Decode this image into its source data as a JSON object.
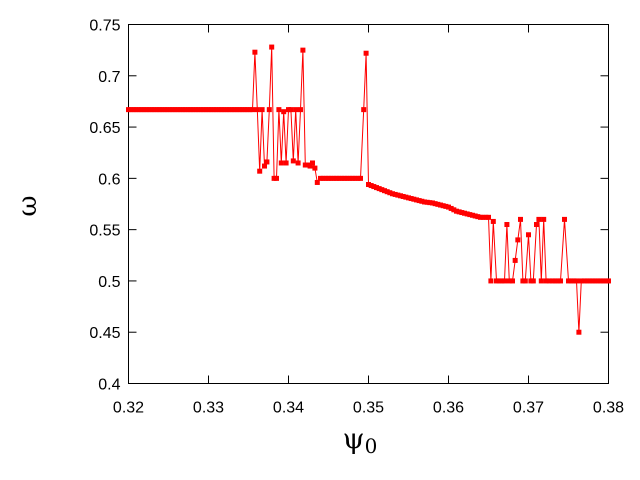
{
  "chart_data": {
    "type": "line",
    "xlabel": "ψ",
    "xlabel_subscript": "0",
    "ylabel": "ω",
    "xlim": [
      0.32,
      0.38
    ],
    "ylim": [
      0.4,
      0.75
    ],
    "xticks": [
      "0.32",
      "0.33",
      "0.34",
      "0.35",
      "0.36",
      "0.37",
      "0.38"
    ],
    "yticks": [
      "0.4",
      "0.45",
      "0.5",
      "0.55",
      "0.6",
      "0.65",
      "0.7",
      "0.75"
    ],
    "grid": false,
    "series_color": "#ff0000",
    "series": [
      {
        "x": [
          0.32,
          0.3355,
          0.3358,
          0.3361,
          0.3364,
          0.3367,
          0.337,
          0.3373,
          0.3376,
          0.3379,
          0.3382,
          0.3385,
          0.3388,
          0.3391,
          0.3394,
          0.3397,
          0.34,
          0.3403,
          0.3406,
          0.3409,
          0.3412,
          0.3415,
          0.3418,
          0.3421,
          0.3424,
          0.3427,
          0.343,
          0.3433,
          0.3436,
          0.344,
          0.345,
          0.346,
          0.347,
          0.348,
          0.349,
          0.3494,
          0.3497,
          0.35,
          0.351,
          0.352,
          0.353,
          0.354,
          0.355,
          0.356,
          0.357,
          0.358,
          0.359,
          0.36,
          0.361,
          0.362,
          0.363,
          0.364,
          0.365,
          0.3653,
          0.3656,
          0.366,
          0.367,
          0.3673,
          0.3676,
          0.368,
          0.369,
          0.3693,
          0.3696,
          0.37,
          0.3703,
          0.3706,
          0.371,
          0.3713,
          0.3716,
          0.3719,
          0.3722,
          0.373,
          0.374,
          0.3745,
          0.375,
          0.376,
          0.3763,
          0.3766,
          0.377,
          0.378,
          0.38
        ],
        "y": [
          0.667,
          0.667,
          0.723,
          0.667,
          0.607,
          0.667,
          0.612,
          0.616,
          0.667,
          0.728,
          0.6,
          0.6,
          0.667,
          0.615,
          0.665,
          0.615,
          0.667,
          0.667,
          0.617,
          0.667,
          0.615,
          0.667,
          0.725,
          0.613,
          0.613,
          0.612,
          0.615,
          0.61,
          0.596,
          0.6,
          0.6,
          0.6,
          0.6,
          0.6,
          0.6,
          0.667,
          0.722,
          0.594,
          0.591,
          0.588,
          0.585,
          0.583,
          0.581,
          0.579,
          0.577,
          0.576,
          0.574,
          0.572,
          0.568,
          0.566,
          0.564,
          0.562,
          0.562,
          0.5,
          0.558,
          0.5,
          0.5,
          0.555,
          0.5,
          0.5,
          0.56,
          0.5,
          0.5,
          0.545,
          0.5,
          0.5,
          0.555,
          0.56,
          0.5,
          0.56,
          0.5,
          0.5,
          0.5,
          0.56,
          0.5,
          0.5,
          0.45,
          0.5,
          0.5,
          0.5,
          0.5
        ]
      }
    ]
  }
}
